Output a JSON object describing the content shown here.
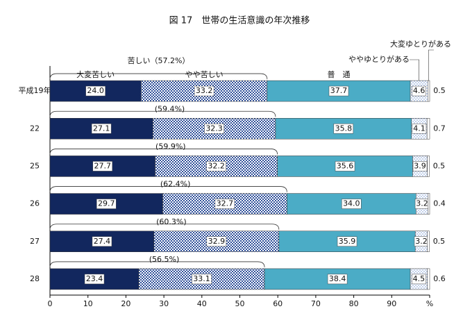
{
  "chart_data": {
    "type": "stacked-bar-horizontal",
    "title": "図 17　世帯の生活意識の年次推移",
    "categories": [
      "平成19年",
      "22",
      "25",
      "26",
      "27",
      "28"
    ],
    "series": [
      {
        "name": "大変苦しい",
        "color": "#12275e",
        "values": [
          24.0,
          27.1,
          27.7,
          29.7,
          27.4,
          23.4
        ],
        "value_labels": [
          "24.0",
          "27.1",
          "27.7",
          "29.7",
          "27.4",
          "23.4"
        ]
      },
      {
        "name": "やや苦しい",
        "color": "#2e4f9a",
        "pattern": "checker",
        "values": [
          33.2,
          32.3,
          32.2,
          32.7,
          32.9,
          33.1
        ],
        "value_labels": [
          "33.2",
          "32.3",
          "32.2",
          "32.7",
          "32.9",
          "33.1"
        ]
      },
      {
        "name": "普　通",
        "color": "#4bacc6",
        "values": [
          37.7,
          35.8,
          35.6,
          34.0,
          35.9,
          38.4
        ],
        "value_labels": [
          "37.7",
          "35.8",
          "35.6",
          "34.0",
          "35.9",
          "38.4"
        ]
      },
      {
        "name": "ややゆとりがある",
        "color": "#6a8fd0",
        "pattern": "dots",
        "values": [
          4.6,
          4.1,
          3.9,
          3.2,
          3.2,
          4.5
        ],
        "value_labels": [
          "4.6",
          "4.1",
          "3.9",
          "3.2",
          "3.2",
          "4.5"
        ]
      },
      {
        "name": "大変ゆとりがある",
        "color": "#ffffff",
        "values": [
          0.5,
          0.7,
          0.5,
          0.4,
          0.5,
          0.6
        ],
        "value_labels": [
          "0.5",
          "0.7",
          "0.5",
          "0.4",
          "0.5",
          "0.6"
        ]
      }
    ],
    "bracket_labels": [
      "苦しい（57.2%）",
      "(59.4%)",
      "(59.9%)",
      "(62.4%)",
      "(60.3%)",
      "(56.5%)"
    ],
    "xlim": [
      0,
      100
    ],
    "xticks": [
      0,
      10,
      20,
      30,
      40,
      50,
      60,
      70,
      80,
      90,
      {
        "value": 100,
        "label": "%"
      }
    ]
  }
}
